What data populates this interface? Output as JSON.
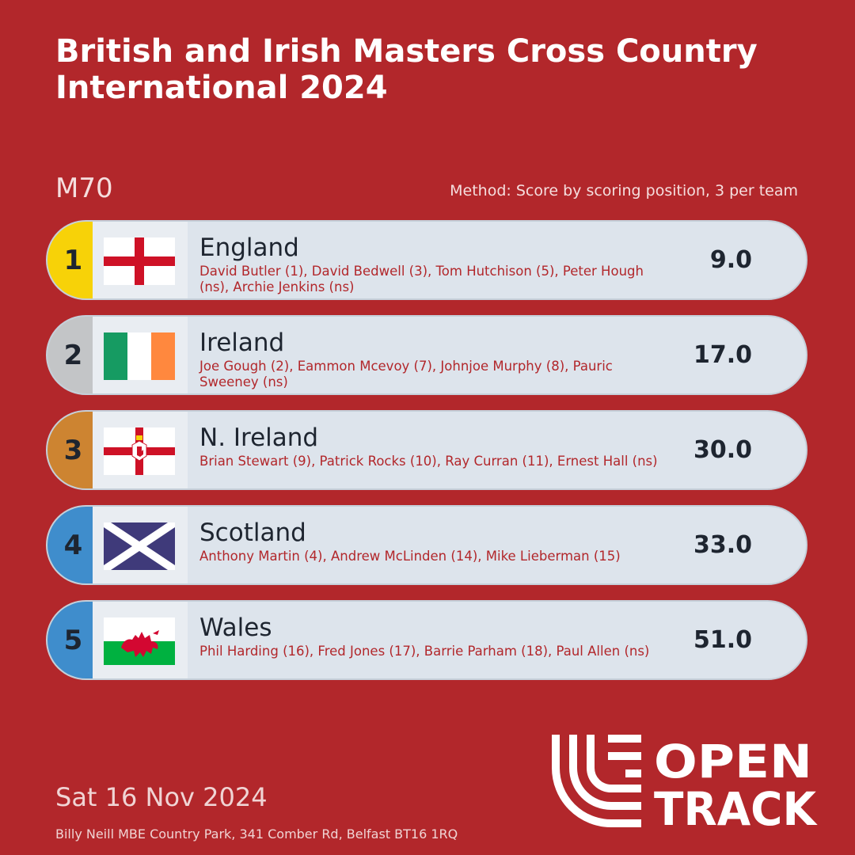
{
  "header": {
    "title": "British and Irish Masters Cross Country International 2024",
    "category": "M70",
    "method": "Method: Score by scoring position, 3 per team"
  },
  "results": [
    {
      "rank": "1",
      "team": "England",
      "flag": "england-flag-icon",
      "athletes": "David Butler (1), David Bedwell (3), Tom Hutchison (5), Peter Hough (ns), Archie Jenkins (ns)",
      "score": "9.0"
    },
    {
      "rank": "2",
      "team": "Ireland",
      "flag": "ireland-flag-icon",
      "athletes": "Joe Gough (2), Eammon Mcevoy (7), Johnjoe Murphy (8), Pauric Sweeney (ns)",
      "score": "17.0"
    },
    {
      "rank": "3",
      "team": "N. Ireland",
      "flag": "northern-ireland-flag-icon",
      "athletes": "Brian Stewart (9), Patrick Rocks (10), Ray Curran (11), Ernest Hall (ns)",
      "score": "30.0"
    },
    {
      "rank": "4",
      "team": "Scotland",
      "flag": "scotland-flag-icon",
      "athletes": "Anthony Martin (4), Andrew McLinden (14), Mike Lieberman (15)",
      "score": "33.0"
    },
    {
      "rank": "5",
      "team": "Wales",
      "flag": "wales-flag-icon",
      "athletes": "Phil Harding (16), Fred Jones (17), Barrie Parham (18), Paul Allen (ns)",
      "score": "51.0"
    }
  ],
  "footer": {
    "date": "Sat 16 Nov 2024",
    "venue": "Billy Neill MBE Country Park, 341 Comber Rd, Belfast BT16 1RQ"
  },
  "logo": {
    "line1": "OPEN",
    "line2": "TRACK",
    "icon": "opentrack-logo-icon"
  },
  "colors": {
    "background": "#b2272b",
    "gold": "#f7d208",
    "silver": "#c3c5c7",
    "bronze": "#cd8431",
    "other": "#3f8dcc"
  }
}
